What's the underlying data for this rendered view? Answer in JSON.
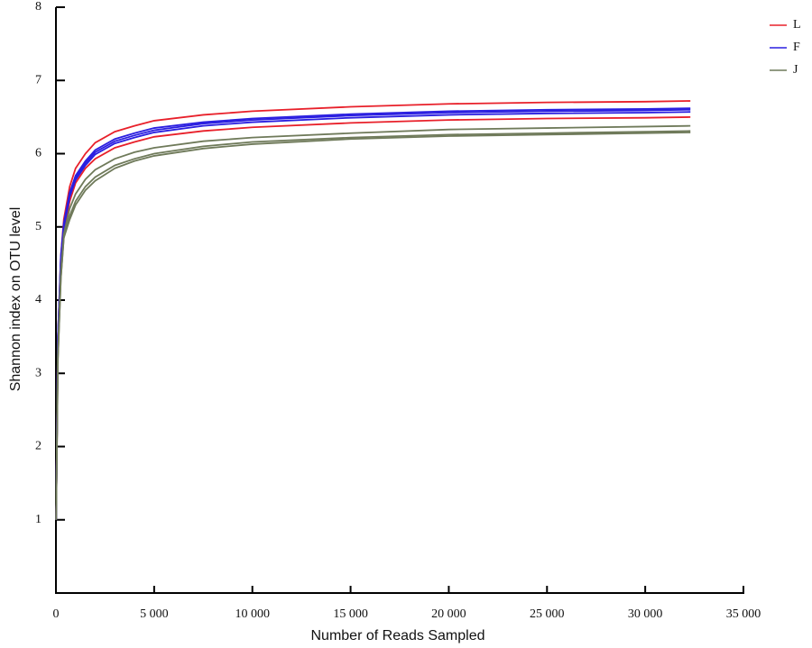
{
  "chart_data": {
    "type": "line",
    "x_label": "Number of Reads Sampled",
    "y_label": "Shannon index on OTU level",
    "x": [
      10,
      100,
      250,
      400,
      700,
      1000,
      1500,
      2000,
      3000,
      4000,
      5000,
      7500,
      10000,
      15000,
      20000,
      25000,
      30000,
      32300
    ],
    "series": [
      {
        "name": "L",
        "color": "#e8202a",
        "replicates": [
          {
            "values": [
              1.0,
              3.5,
              4.6,
              5.1,
              5.55,
              5.8,
              6.0,
              6.15,
              6.3,
              6.38,
              6.45,
              6.53,
              6.58,
              6.64,
              6.68,
              6.7,
              6.71,
              6.72
            ]
          },
          {
            "values": [
              1.0,
              3.4,
              4.5,
              4.95,
              5.35,
              5.6,
              5.8,
              5.93,
              6.08,
              6.16,
              6.23,
              6.31,
              6.36,
              6.42,
              6.46,
              6.48,
              6.49,
              6.5
            ]
          }
        ]
      },
      {
        "name": "F",
        "color": "#2a1ee0",
        "replicates": [
          {
            "values": [
              1.0,
              3.5,
              4.6,
              5.05,
              5.47,
              5.7,
              5.9,
              6.05,
              6.2,
              6.28,
              6.35,
              6.43,
              6.48,
              6.54,
              6.58,
              6.6,
              6.61,
              6.62
            ]
          },
          {
            "values": [
              1.0,
              3.5,
              4.55,
              5.02,
              5.44,
              5.67,
              5.87,
              6.02,
              6.17,
              6.25,
              6.32,
              6.41,
              6.46,
              6.52,
              6.56,
              6.58,
              6.59,
              6.6
            ]
          },
          {
            "values": [
              1.0,
              3.45,
              4.52,
              4.99,
              5.41,
              5.64,
              5.84,
              5.99,
              6.14,
              6.22,
              6.29,
              6.38,
              6.43,
              6.49,
              6.53,
              6.55,
              6.56,
              6.57
            ]
          }
        ]
      },
      {
        "name": "J",
        "color": "#6f7a5a",
        "replicates": [
          {
            "values": [
              1.0,
              3.3,
              4.4,
              4.9,
              5.25,
              5.45,
              5.65,
              5.78,
              5.93,
              6.02,
              6.08,
              6.17,
              6.22,
              6.28,
              6.33,
              6.35,
              6.37,
              6.38
            ]
          },
          {
            "values": [
              1.0,
              3.2,
              4.3,
              4.85,
              5.15,
              5.35,
              5.55,
              5.68,
              5.84,
              5.93,
              6.0,
              6.1,
              6.16,
              6.22,
              6.26,
              6.28,
              6.3,
              6.31
            ]
          },
          {
            "values": [
              1.0,
              3.2,
              4.3,
              4.85,
              5.1,
              5.3,
              5.5,
              5.63,
              5.8,
              5.9,
              5.97,
              6.07,
              6.13,
              6.2,
              6.24,
              6.26,
              6.28,
              6.29
            ]
          }
        ]
      }
    ],
    "xlim": [
      0,
      35000
    ],
    "xticks": [
      0,
      {
        "value": 5000,
        "label": "5 000"
      },
      {
        "value": 10000,
        "label": "10 000"
      },
      {
        "value": 15000,
        "label": "15 000"
      },
      {
        "value": 20000,
        "label": "20 000"
      },
      {
        "value": 25000,
        "label": "25 000"
      },
      {
        "value": 30000,
        "label": "30 000"
      },
      {
        "value": 35000,
        "label": "35 000"
      }
    ],
    "ylim": [
      0,
      8
    ],
    "yticks": [
      1,
      2,
      3,
      4,
      5,
      6,
      7,
      8
    ],
    "legend": "top-right"
  }
}
